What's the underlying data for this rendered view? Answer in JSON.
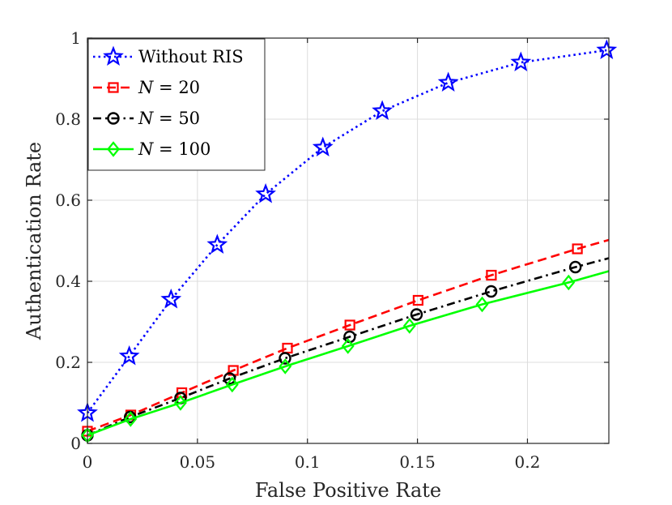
{
  "chart_data": {
    "type": "line",
    "title": "",
    "xlabel": "False Positive Rate",
    "ylabel": "Authentication Rate",
    "xlim": [
      0,
      0.237
    ],
    "ylim": [
      0,
      1
    ],
    "xticks": [
      0,
      0.05,
      0.1,
      0.15,
      0.2
    ],
    "xtick_labels": [
      "0",
      "0.05",
      "0.1",
      "0.15",
      "0.2"
    ],
    "yticks": [
      0,
      0.2,
      0.4,
      0.6,
      0.8,
      1
    ],
    "ytick_labels": [
      "0",
      "0.2",
      "0.4",
      "0.6",
      "0.8",
      "1"
    ],
    "grid": true,
    "legend_position": "top-left",
    "series": [
      {
        "name": "Without RIS",
        "legend_var": "",
        "legend_value": "Without RIS",
        "color": "#0000ff",
        "line_style": "dotted",
        "marker": "star",
        "x": [
          0.0,
          0.019,
          0.038,
          0.059,
          0.081,
          0.107,
          0.134,
          0.164,
          0.197,
          0.236
        ],
        "y": [
          0.075,
          0.215,
          0.355,
          0.49,
          0.615,
          0.73,
          0.82,
          0.89,
          0.94,
          0.97
        ]
      },
      {
        "name": "N = 20",
        "legend_var": "N",
        "legend_value": " = 20",
        "color": "#ff0000",
        "line_style": "dashed",
        "marker": "square",
        "x": [
          0.0,
          0.0197,
          0.0429,
          0.0663,
          0.0909,
          0.1193,
          0.1503,
          0.1836,
          0.2227,
          0.237
        ],
        "y": [
          0.03,
          0.07,
          0.125,
          0.18,
          0.235,
          0.292,
          0.353,
          0.415,
          0.48,
          0.502
        ],
        "marker_count": 9
      },
      {
        "name": "N = 50",
        "legend_var": "N",
        "legend_value": " = 50",
        "color": "#000000",
        "line_style": "dashdot",
        "marker": "circle",
        "x": [
          0.0,
          0.0194,
          0.0423,
          0.0646,
          0.0898,
          0.1192,
          0.1496,
          0.1835,
          0.2218,
          0.237
        ],
        "y": [
          0.02,
          0.065,
          0.112,
          0.16,
          0.21,
          0.263,
          0.318,
          0.375,
          0.435,
          0.457
        ],
        "marker_count": 9
      },
      {
        "name": "N = 100",
        "legend_var": "N",
        "legend_value": " = 100",
        "color": "#00ff00",
        "line_style": "solid",
        "marker": "diamond",
        "x": [
          0.0,
          0.0196,
          0.0423,
          0.0658,
          0.0899,
          0.1184,
          0.1464,
          0.1794,
          0.2187,
          0.237
        ],
        "y": [
          0.02,
          0.06,
          0.1,
          0.145,
          0.19,
          0.24,
          0.29,
          0.343,
          0.397,
          0.425
        ],
        "marker_count": 9
      }
    ]
  }
}
